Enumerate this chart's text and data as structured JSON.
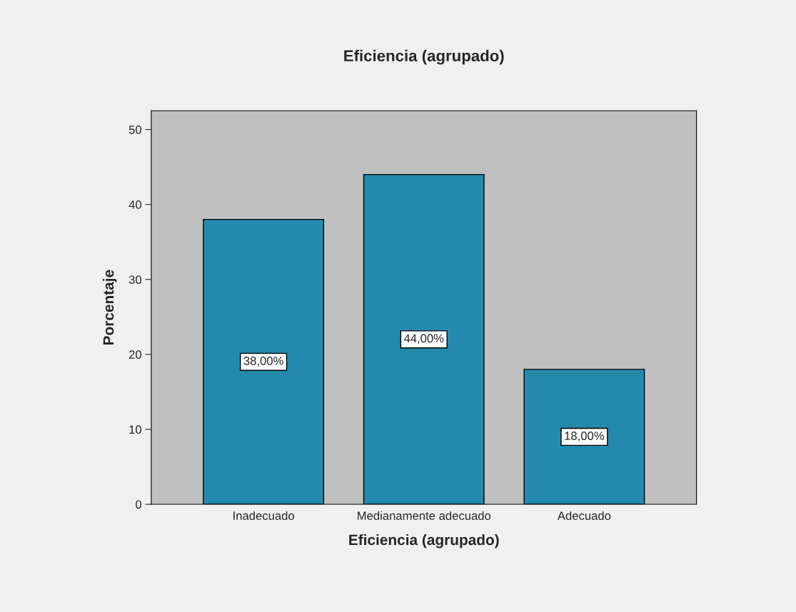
{
  "chart_data": {
    "type": "bar",
    "title": "Eficiencia (agrupado)",
    "xlabel": "Eficiencia (agrupado)",
    "ylabel": "Porcentaje",
    "categories": [
      "Inadecuado",
      "Medianamente adecuado",
      "Adecuado"
    ],
    "values": [
      38,
      44,
      18
    ],
    "value_labels": [
      "38,00%",
      "44,00%",
      "18,00%"
    ],
    "color": "#248aad",
    "ylim": [
      0,
      52.5
    ],
    "yticks": [
      0,
      10,
      20,
      30,
      40,
      50
    ],
    "grid": false
  }
}
